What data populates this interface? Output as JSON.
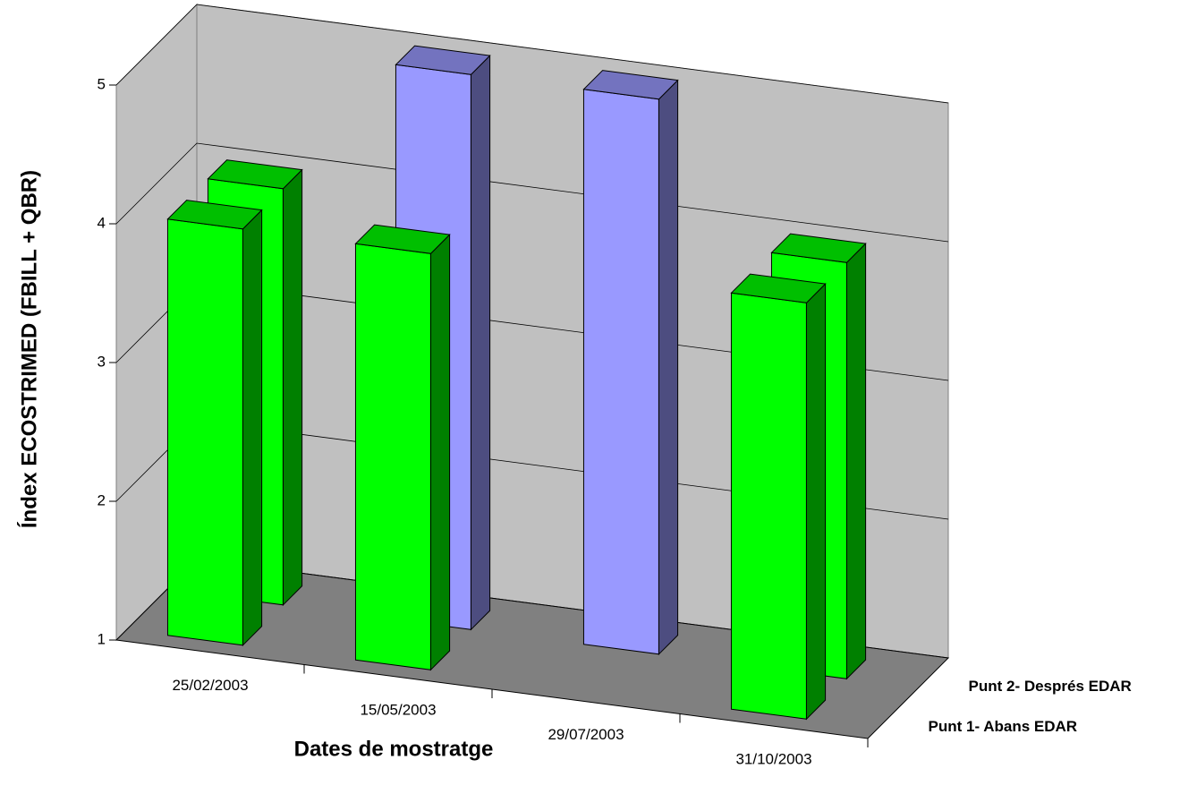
{
  "chart_data": {
    "type": "bar3d",
    "y_label": "Índex ECOSTRIMED (FBILL + QBR)",
    "x_label": "Dates de mostratge",
    "categories": [
      "25/02/2003",
      "15/05/2003",
      "29/07/2003",
      "31/10/2003"
    ],
    "series": [
      {
        "name": "Punt 1- Abans EDAR",
        "colors": [
          "#00ff00",
          "#00ff00",
          "#00ff00",
          "#00ff00"
        ],
        "values": [
          4,
          4,
          null,
          4
        ]
      },
      {
        "name": "Punt 2- Després EDAR",
        "colors": [
          "#00ff00",
          "#9999ff",
          "#9999ff",
          "#00ff00"
        ],
        "values": [
          4,
          5,
          5,
          4
        ]
      }
    ],
    "ylim": [
      1,
      5
    ],
    "yticks": [
      1,
      2,
      3,
      4,
      5
    ],
    "grid": true
  }
}
